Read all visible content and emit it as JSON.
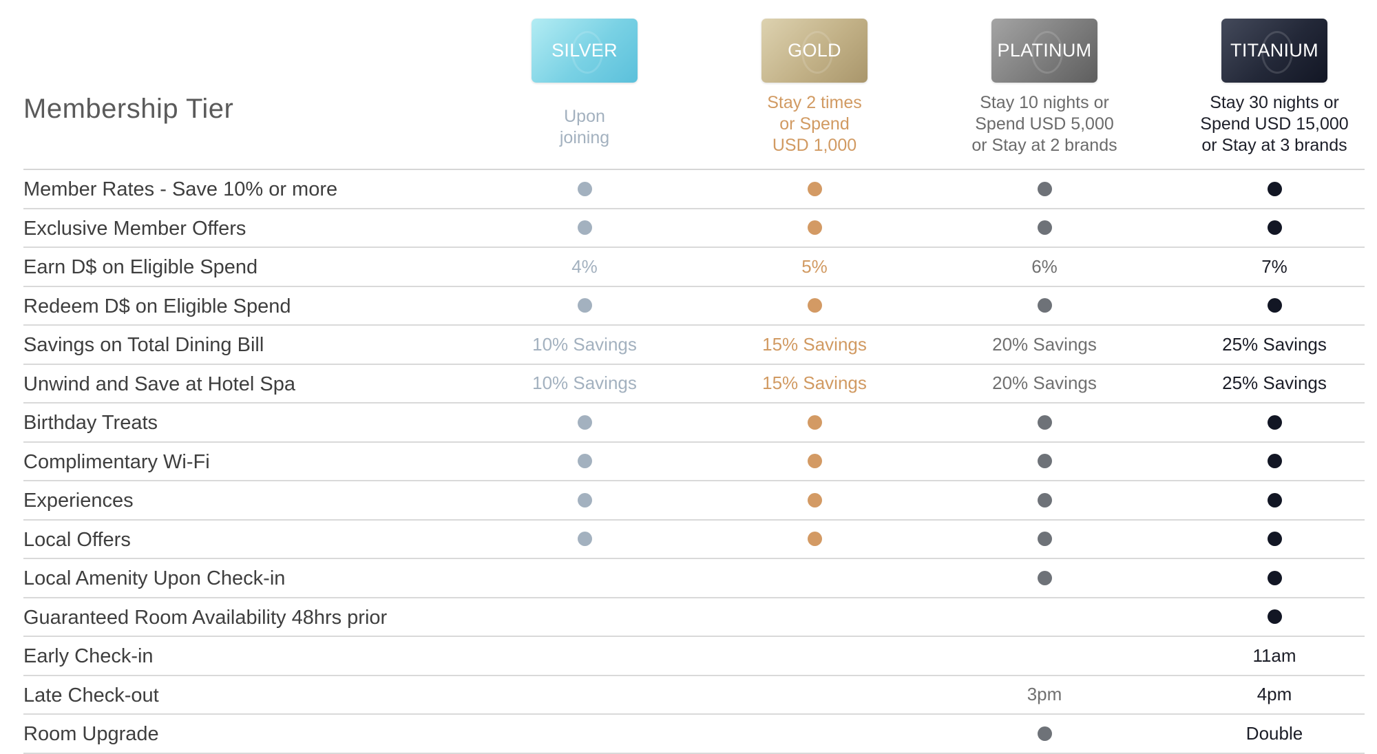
{
  "title": "Membership Tier",
  "tiers": [
    {
      "name": "SILVER",
      "requirement": "Upon\njoining",
      "color": "#a3b1bf"
    },
    {
      "name": "GOLD",
      "requirement": "Stay 2 times\nor Spend\nUSD 1,000",
      "color": "#d19a62"
    },
    {
      "name": "PLATINUM",
      "requirement": "Stay 10 nights or\nSpend USD 5,000\nor Stay at 2 brands",
      "color": "#6e7278"
    },
    {
      "name": "TITANIUM",
      "requirement": "Stay 30 nights or\nSpend USD 15,000\nor Stay at 3 brands",
      "color": "#121624"
    }
  ],
  "rows": [
    {
      "feature": "Member Rates - Save 10% or more",
      "values": [
        "dot",
        "dot",
        "dot",
        "dot"
      ]
    },
    {
      "feature": "Exclusive Member Offers",
      "values": [
        "dot",
        "dot",
        "dot",
        "dot"
      ]
    },
    {
      "feature": "Earn D$ on Eligible Spend",
      "values": [
        "4%",
        "5%",
        "6%",
        "7%"
      ]
    },
    {
      "feature": "Redeem D$ on Eligible Spend",
      "values": [
        "dot",
        "dot",
        "dot",
        "dot"
      ]
    },
    {
      "feature": "Savings on Total Dining Bill",
      "values": [
        "10% Savings",
        "15% Savings",
        "20% Savings",
        "25% Savings"
      ]
    },
    {
      "feature": "Unwind and Save at Hotel Spa",
      "values": [
        "10% Savings",
        "15% Savings",
        "20% Savings",
        "25% Savings"
      ]
    },
    {
      "feature": "Birthday Treats",
      "values": [
        "dot",
        "dot",
        "dot",
        "dot"
      ]
    },
    {
      "feature": "Complimentary Wi-Fi",
      "values": [
        "dot",
        "dot",
        "dot",
        "dot"
      ]
    },
    {
      "feature": "Experiences",
      "values": [
        "dot",
        "dot",
        "dot",
        "dot"
      ]
    },
    {
      "feature": "Local Offers",
      "values": [
        "dot",
        "dot",
        "dot",
        "dot"
      ]
    },
    {
      "feature": "Local Amenity Upon Check-in",
      "values": [
        "",
        "",
        "dot",
        "dot"
      ]
    },
    {
      "feature": "Guaranteed Room Availability 48hrs prior",
      "values": [
        "",
        "",
        "",
        "dot"
      ]
    },
    {
      "feature": "Early Check-in",
      "values": [
        "",
        "",
        "",
        "11am"
      ]
    },
    {
      "feature": "Late Check-out",
      "values": [
        "",
        "",
        "3pm",
        "4pm"
      ]
    },
    {
      "feature": "Room Upgrade",
      "values": [
        "",
        "",
        "dot",
        "Double"
      ]
    }
  ]
}
